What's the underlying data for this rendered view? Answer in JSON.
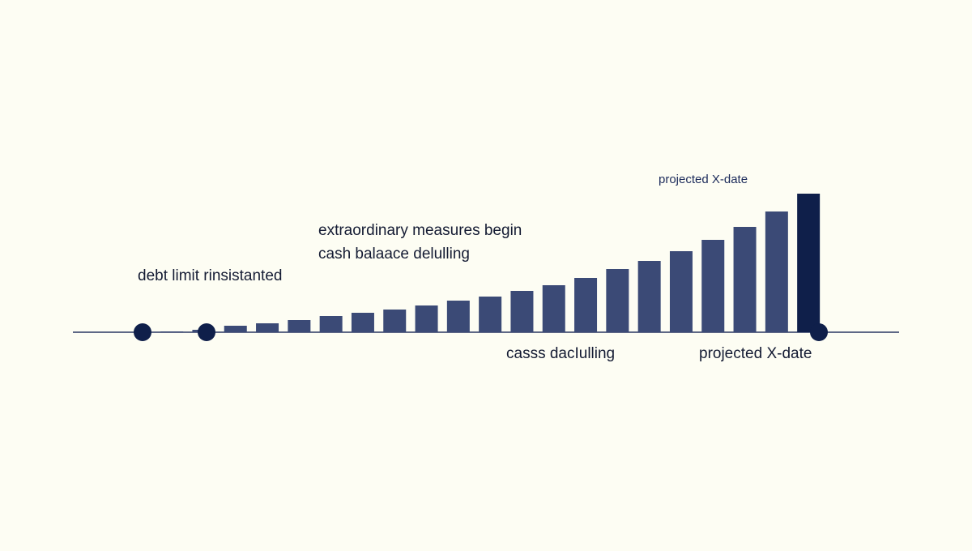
{
  "chart_data": {
    "type": "bar",
    "categories": [
      null,
      null,
      null,
      null,
      null,
      null,
      null,
      null,
      null,
      null,
      null,
      null,
      null,
      null,
      null,
      null,
      null,
      null,
      null,
      null,
      null
    ],
    "values": [
      1,
      3,
      8,
      11,
      15,
      20,
      24,
      28,
      33,
      39,
      44,
      51,
      58,
      67,
      78,
      88,
      100,
      114,
      130,
      149,
      171
    ],
    "colors": [
      "#3b4a76",
      "#3b4a76",
      "#3b4a76",
      "#3b4a76",
      "#3b4a76",
      "#3b4a76",
      "#3b4a76",
      "#3b4a76",
      "#3b4a76",
      "#3b4a76",
      "#3b4a76",
      "#3b4a76",
      "#3b4a76",
      "#3b4a76",
      "#3b4a76",
      "#3b4a76",
      "#3b4a76",
      "#3b4a76",
      "#3b4a76",
      "#3b4a76",
      "#0f1f4a"
    ],
    "ylim": [
      0,
      180
    ],
    "annotations": [
      "projected X-date",
      "extraordinary measures begin",
      "cash balaace delulling",
      "debt limit rinsistanted",
      "casss dacIulling",
      "projected X-date"
    ]
  }
}
